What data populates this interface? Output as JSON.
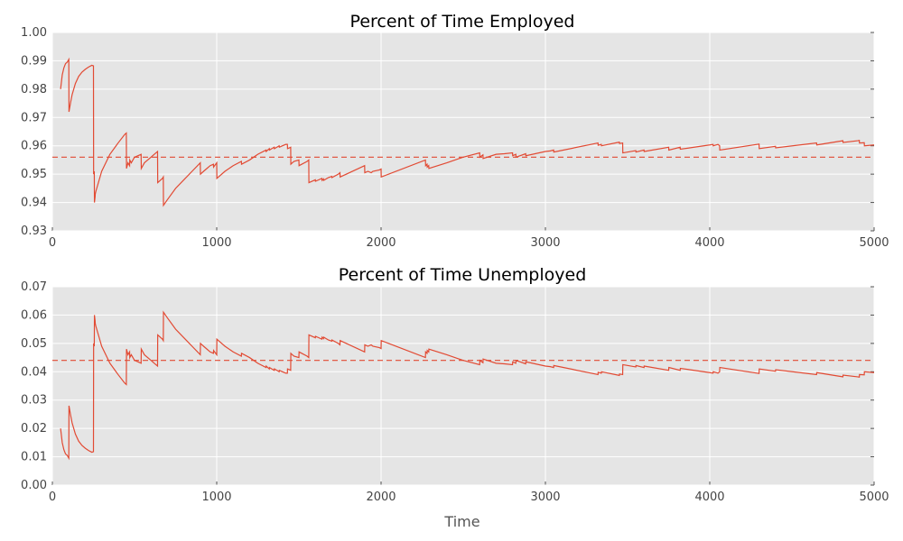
{
  "chart_data": [
    {
      "type": "line",
      "title": "Percent of Time Employed",
      "xlabel": "",
      "ylabel": "",
      "xlim": [
        0,
        5000
      ],
      "ylim": [
        0.93,
        1.0
      ],
      "xticks": [
        "0",
        "1000",
        "2000",
        "3000",
        "4000",
        "5000"
      ],
      "yticks": [
        "0.93",
        "0.94",
        "0.95",
        "0.96",
        "0.97",
        "0.98",
        "0.99",
        "1.00"
      ],
      "grid": true,
      "background": "#e5e5e5",
      "series": [
        {
          "color": "#e24a33",
          "style": "solid",
          "x": [
            50,
            60,
            70,
            80,
            90,
            100,
            101,
            110,
            120,
            140,
            160,
            180,
            200,
            220,
            240,
            250,
            251,
            255,
            256,
            260,
            261,
            265,
            270,
            300,
            350,
            400,
            440,
            450,
            451,
            460,
            470,
            471,
            480,
            490,
            500,
            540,
            541,
            560,
            600,
            630,
            640,
            641,
            660,
            670,
            675,
            676,
            700,
            750,
            800,
            850,
            900,
            901,
            920,
            940,
            960,
            980,
            981,
            1000,
            1001,
            1050,
            1100,
            1150,
            1151,
            1200,
            1250,
            1300,
            1301,
            1320,
            1321,
            1350,
            1351,
            1380,
            1381,
            1400,
            1420,
            1430,
            1431,
            1450,
            1451,
            1460,
            1470,
            1500,
            1501,
            1550,
            1560,
            1561,
            1600,
            1601,
            1640,
            1641,
            1650,
            1651,
            1680,
            1700,
            1701,
            1740,
            1750,
            1751,
            1900,
            1901,
            1920,
            1940,
            1950,
            1990,
            2000,
            2001,
            2270,
            2271,
            2280,
            2281,
            2290,
            2291,
            2400,
            2500,
            2600,
            2601,
            2620,
            2621,
            2700,
            2750,
            2800,
            2801,
            2820,
            2821,
            2880,
            2881,
            3000,
            3030,
            3050,
            3051,
            3320,
            3321,
            3340,
            3341,
            3450,
            3451,
            3470,
            3471,
            3550,
            3551,
            3600,
            3601,
            3750,
            3751,
            3820,
            3821,
            4000,
            4020,
            4021,
            4050,
            4060,
            4061,
            4300,
            4301,
            4400,
            4401,
            4650,
            4651,
            4800,
            4810,
            4811,
            4900,
            4910,
            4911,
            4940,
            4941,
            5000
          ],
          "y": [
            0.98,
            0.985,
            0.9875,
            0.989,
            0.9895,
            0.9905,
            0.972,
            0.975,
            0.978,
            0.982,
            0.9845,
            0.986,
            0.987,
            0.9878,
            0.9884,
            0.9882,
            0.95,
            0.951,
            0.94,
            0.942,
            0.943,
            0.944,
            0.945,
            0.951,
            0.957,
            0.961,
            0.964,
            0.9645,
            0.952,
            0.954,
            0.953,
            0.955,
            0.954,
            0.955,
            0.956,
            0.957,
            0.952,
            0.954,
            0.956,
            0.9575,
            0.958,
            0.947,
            0.948,
            0.9485,
            0.949,
            0.939,
            0.941,
            0.945,
            0.948,
            0.951,
            0.954,
            0.95,
            0.951,
            0.952,
            0.953,
            0.9535,
            0.9525,
            0.954,
            0.9485,
            0.951,
            0.953,
            0.9545,
            0.9535,
            0.955,
            0.957,
            0.9585,
            0.958,
            0.959,
            0.9585,
            0.9595,
            0.959,
            0.96,
            0.9595,
            0.96,
            0.9605,
            0.9605,
            0.959,
            0.9595,
            0.9535,
            0.954,
            0.9545,
            0.955,
            0.953,
            0.9545,
            0.955,
            0.947,
            0.948,
            0.9475,
            0.9485,
            0.9478,
            0.9483,
            0.9478,
            0.9488,
            0.9492,
            0.9488,
            0.95,
            0.9505,
            0.949,
            0.953,
            0.9505,
            0.951,
            0.9505,
            0.951,
            0.9515,
            0.9518,
            0.949,
            0.955,
            0.953,
            0.9535,
            0.9525,
            0.953,
            0.952,
            0.954,
            0.956,
            0.9575,
            0.956,
            0.9568,
            0.9555,
            0.957,
            0.9572,
            0.9575,
            0.9565,
            0.957,
            0.956,
            0.9572,
            0.9565,
            0.958,
            0.9582,
            0.9585,
            0.9578,
            0.961,
            0.9602,
            0.9605,
            0.96,
            0.9613,
            0.9608,
            0.961,
            0.9575,
            0.9583,
            0.9578,
            0.9585,
            0.958,
            0.9595,
            0.9585,
            0.9595,
            0.9588,
            0.9603,
            0.9605,
            0.96,
            0.9605,
            0.96,
            0.9585,
            0.9606,
            0.959,
            0.9598,
            0.9593,
            0.961,
            0.9603,
            0.9617,
            0.9618,
            0.9612,
            0.9618,
            0.9619,
            0.961,
            0.9611,
            0.96,
            0.9603
          ]
        },
        {
          "color": "#e24a33",
          "style": "dashed",
          "x": [
            0,
            5000
          ],
          "y": [
            0.956,
            0.956
          ]
        }
      ]
    },
    {
      "type": "line",
      "title": "Percent of Time Unemployed",
      "xlabel": "Time",
      "ylabel": "",
      "xlim": [
        0,
        5000
      ],
      "ylim": [
        0.0,
        0.07
      ],
      "xticks": [
        "0",
        "1000",
        "2000",
        "3000",
        "4000",
        "5000"
      ],
      "yticks": [
        "0.00",
        "0.01",
        "0.02",
        "0.03",
        "0.04",
        "0.05",
        "0.06",
        "0.07"
      ],
      "grid": true,
      "background": "#e5e5e5",
      "series": [
        {
          "color": "#e24a33",
          "style": "solid",
          "x": [
            50,
            60,
            70,
            80,
            90,
            100,
            101,
            110,
            120,
            140,
            160,
            180,
            200,
            220,
            240,
            250,
            251,
            255,
            256,
            260,
            261,
            265,
            270,
            300,
            350,
            400,
            440,
            450,
            451,
            460,
            470,
            471,
            480,
            490,
            500,
            540,
            541,
            560,
            600,
            630,
            640,
            641,
            660,
            670,
            675,
            676,
            700,
            750,
            800,
            850,
            900,
            901,
            920,
            940,
            960,
            980,
            981,
            1000,
            1001,
            1050,
            1100,
            1150,
            1151,
            1200,
            1250,
            1300,
            1301,
            1320,
            1321,
            1350,
            1351,
            1380,
            1381,
            1400,
            1420,
            1430,
            1431,
            1450,
            1451,
            1460,
            1470,
            1500,
            1501,
            1550,
            1560,
            1561,
            1600,
            1601,
            1640,
            1641,
            1650,
            1651,
            1680,
            1700,
            1701,
            1740,
            1750,
            1751,
            1900,
            1901,
            1920,
            1940,
            1950,
            1990,
            2000,
            2001,
            2270,
            2271,
            2280,
            2281,
            2290,
            2291,
            2400,
            2500,
            2600,
            2601,
            2620,
            2621,
            2700,
            2750,
            2800,
            2801,
            2820,
            2821,
            2880,
            2881,
            3000,
            3030,
            3050,
            3051,
            3320,
            3321,
            3340,
            3341,
            3450,
            3451,
            3470,
            3471,
            3550,
            3551,
            3600,
            3601,
            3750,
            3751,
            3820,
            3821,
            4000,
            4020,
            4021,
            4050,
            4060,
            4061,
            4300,
            4301,
            4400,
            4401,
            4650,
            4651,
            4800,
            4810,
            4811,
            4900,
            4910,
            4911,
            4940,
            4941,
            5000
          ],
          "y": [
            0.02,
            0.015,
            0.0125,
            0.011,
            0.0105,
            0.0095,
            0.028,
            0.025,
            0.022,
            0.018,
            0.0155,
            0.014,
            0.013,
            0.0122,
            0.0116,
            0.0118,
            0.05,
            0.049,
            0.06,
            0.058,
            0.057,
            0.056,
            0.055,
            0.049,
            0.043,
            0.039,
            0.036,
            0.0355,
            0.048,
            0.046,
            0.047,
            0.045,
            0.046,
            0.045,
            0.044,
            0.043,
            0.048,
            0.046,
            0.044,
            0.0425,
            0.042,
            0.053,
            0.052,
            0.0515,
            0.051,
            0.061,
            0.059,
            0.055,
            0.052,
            0.049,
            0.046,
            0.05,
            0.049,
            0.048,
            0.047,
            0.0465,
            0.0475,
            0.046,
            0.0515,
            0.049,
            0.047,
            0.0455,
            0.0465,
            0.045,
            0.043,
            0.0415,
            0.042,
            0.041,
            0.0415,
            0.0405,
            0.041,
            0.04,
            0.0405,
            0.04,
            0.0395,
            0.0395,
            0.041,
            0.0405,
            0.0465,
            0.046,
            0.0455,
            0.045,
            0.047,
            0.0455,
            0.045,
            0.053,
            0.052,
            0.0525,
            0.0515,
            0.0522,
            0.0517,
            0.0522,
            0.0512,
            0.0508,
            0.0512,
            0.05,
            0.0495,
            0.051,
            0.047,
            0.0495,
            0.049,
            0.0495,
            0.049,
            0.0485,
            0.0482,
            0.051,
            0.045,
            0.047,
            0.0465,
            0.0475,
            0.047,
            0.048,
            0.046,
            0.044,
            0.0425,
            0.044,
            0.0432,
            0.0445,
            0.043,
            0.0428,
            0.0425,
            0.0435,
            0.043,
            0.044,
            0.0428,
            0.0435,
            0.042,
            0.0418,
            0.0415,
            0.0422,
            0.039,
            0.0398,
            0.0395,
            0.04,
            0.0387,
            0.0392,
            0.039,
            0.0425,
            0.0417,
            0.0422,
            0.0415,
            0.042,
            0.0405,
            0.0415,
            0.0405,
            0.0412,
            0.0397,
            0.0395,
            0.04,
            0.0395,
            0.04,
            0.0415,
            0.0394,
            0.041,
            0.0402,
            0.0407,
            0.039,
            0.0397,
            0.0383,
            0.0382,
            0.0388,
            0.0382,
            0.0381,
            0.039,
            0.0389,
            0.04,
            0.0397
          ]
        },
        {
          "color": "#e24a33",
          "style": "dashed",
          "x": [
            0,
            5000
          ],
          "y": [
            0.044,
            0.044
          ]
        }
      ]
    }
  ]
}
